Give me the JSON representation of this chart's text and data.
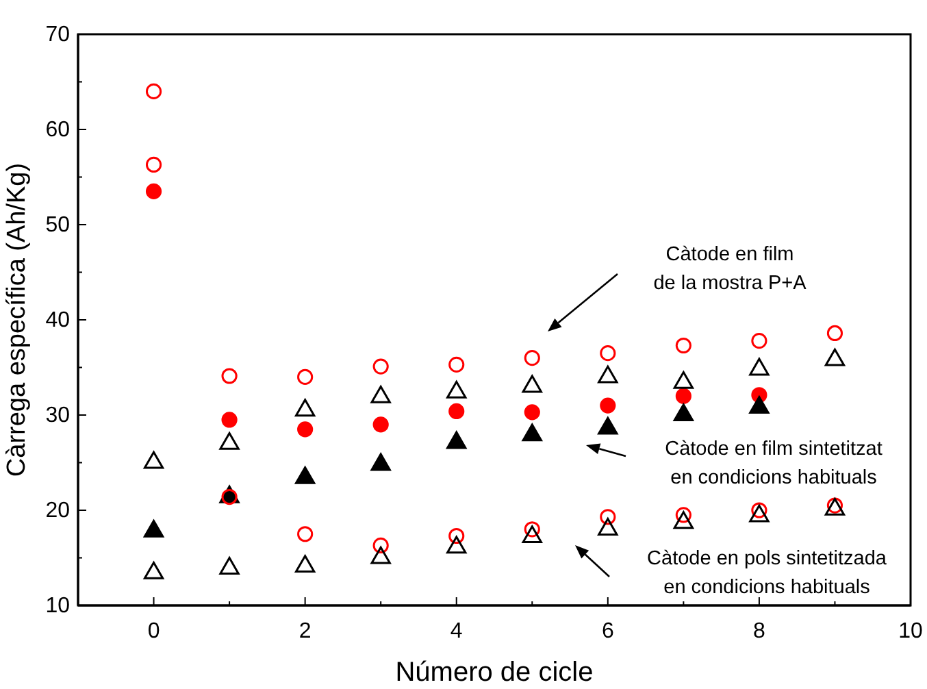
{
  "chart_data": {
    "type": "scatter",
    "xlabel": "Número de cicle",
    "ylabel": "Càrrega específica (Ah/Kg)",
    "x": [
      0,
      1,
      2,
      3,
      4,
      5,
      6,
      7,
      8,
      9
    ],
    "xlim": [
      -1,
      10
    ],
    "xticks": [
      0,
      2,
      4,
      6,
      8,
      10
    ],
    "ylim": [
      10,
      70
    ],
    "yticks": [
      10,
      20,
      30,
      40,
      50,
      60,
      70
    ],
    "grid": false,
    "series": [
      {
        "color": "#ff0000",
        "marker": "circle-open",
        "values": [
          64,
          34.1,
          34,
          35.1,
          35.3,
          36,
          36.5,
          37.3,
          37.8,
          38.6
        ]
      },
      {
        "color": "#ff0000",
        "marker": "circle-open",
        "values": [
          56.3,
          21.4,
          17.5,
          16.3,
          17.3,
          18,
          19.3,
          19.5,
          20,
          20.5
        ]
      },
      {
        "color": "#ff0000",
        "marker": "circle",
        "values": [
          53.5,
          29.5,
          28.5,
          29,
          30.4,
          30.3,
          31,
          32,
          32.1,
          null
        ]
      },
      {
        "color": "#000000",
        "marker": "triangle-open",
        "values": [
          25,
          27,
          30.5,
          31.9,
          32.4,
          33,
          34,
          33.4,
          34.8,
          35.8
        ]
      },
      {
        "color": "#000000",
        "marker": "triangle",
        "values": [
          17.8,
          21.4,
          23.4,
          24.8,
          27.1,
          27.9,
          28.6,
          30,
          30.8,
          null
        ]
      },
      {
        "color": "#000000",
        "marker": "triangle-open",
        "values": [
          13.4,
          13.9,
          14.1,
          15,
          16.1,
          17.2,
          18,
          18.7,
          19.4,
          20.1
        ]
      }
    ],
    "annotations": [
      "Càtode en film\nde la mostra P+A",
      "Càtode en film sintetitzat\nen condicions habituals",
      "Càtode en pols sintetitzada\nen condicions habituals"
    ]
  }
}
